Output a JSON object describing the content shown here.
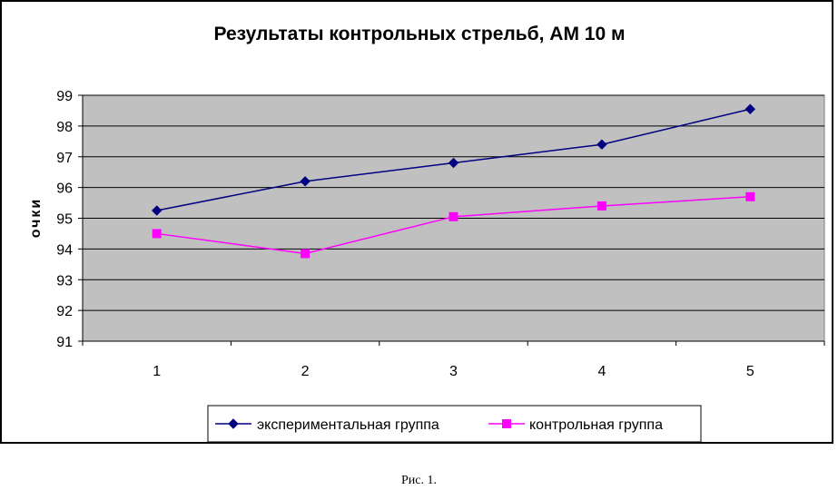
{
  "chart_data": {
    "type": "line",
    "title": "Результаты контрольных стрельб, АМ 10 м",
    "xlabel": "",
    "ylabel": "очки",
    "categories": [
      "1",
      "2",
      "3",
      "4",
      "5"
    ],
    "ylim": [
      91,
      99
    ],
    "yticks": [
      "91",
      "92",
      "93",
      "94",
      "95",
      "96",
      "97",
      "98",
      "99"
    ],
    "grid": true,
    "legend_position": "bottom",
    "series": [
      {
        "name": "экспериментальная группа",
        "values": [
          95.25,
          96.2,
          96.8,
          97.4,
          98.55
        ],
        "color": "#000080",
        "marker": "diamond"
      },
      {
        "name": "контрольная группа",
        "values": [
          94.5,
          93.85,
          95.05,
          95.4,
          95.7
        ],
        "color": "#FF00FF",
        "marker": "square"
      }
    ],
    "plot_background": "#C0C0C0"
  },
  "caption": "Рис. 1."
}
